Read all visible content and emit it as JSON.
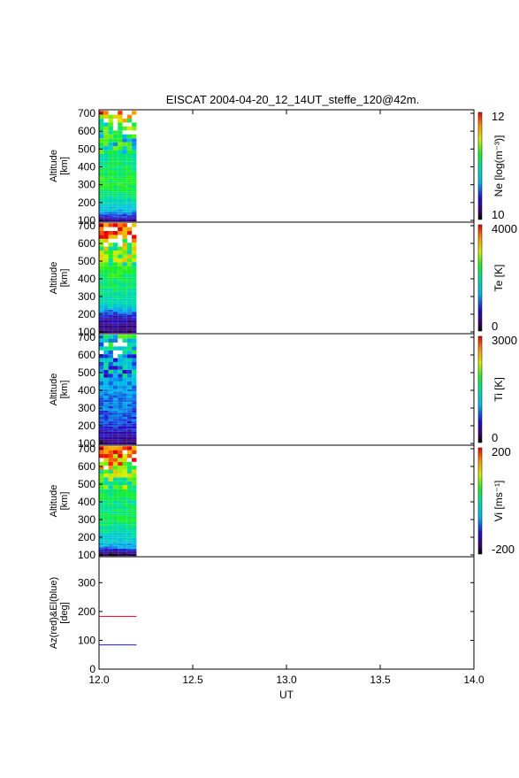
{
  "title": "EISCAT 2004-04-20_12_14UT_steffe_120@42m.",
  "x_axis": {
    "label": "UT",
    "range": [
      12.0,
      14.0
    ],
    "ticks": [
      "12.0",
      "12.5",
      "13.0",
      "13.5",
      "14.0"
    ]
  },
  "data_time_range": [
    12.0,
    12.2
  ],
  "chart_data": [
    {
      "type": "heatmap",
      "parameter": "Ne",
      "ylabel": [
        "Altitude",
        "[km]"
      ],
      "yticks": [
        "100",
        "200",
        "300",
        "400",
        "500",
        "600",
        "700"
      ],
      "ylim": [
        90,
        720
      ],
      "colorbar": {
        "label": "Ne [log(m⁻³)]",
        "min": "10",
        "max": "12"
      },
      "value_scale": "log10",
      "profile_altitudes_km": [
        100,
        150,
        200,
        250,
        300,
        350,
        400,
        450,
        500,
        550,
        600,
        650,
        700
      ],
      "profile_values": [
        10.2,
        10.7,
        10.9,
        11.1,
        11.2,
        11.2,
        11.1,
        11.0,
        11.0,
        11.0,
        11.1,
        11.3,
        11.6
      ]
    },
    {
      "type": "heatmap",
      "parameter": "Te",
      "ylabel": [
        "Altitude",
        "[km]"
      ],
      "yticks": [
        "100",
        "200",
        "300",
        "400",
        "500",
        "600",
        "700"
      ],
      "ylim": [
        90,
        720
      ],
      "colorbar": {
        "label": "Te [K]",
        "min": "0",
        "max": "4000"
      },
      "profile_altitudes_km": [
        100,
        150,
        200,
        250,
        300,
        350,
        400,
        450,
        500,
        550,
        600,
        650,
        700
      ],
      "profile_values": [
        300,
        500,
        900,
        1800,
        2000,
        2150,
        2300,
        2400,
        2500,
        2600,
        2700,
        3900,
        4000
      ]
    },
    {
      "type": "heatmap",
      "parameter": "Ti",
      "ylabel": [
        "Altitude",
        "[km]"
      ],
      "yticks": [
        "100",
        "200",
        "300",
        "400",
        "500",
        "600",
        "700"
      ],
      "ylim": [
        90,
        720
      ],
      "colorbar": {
        "label": "Ti [K]",
        "min": "0",
        "max": "3000"
      },
      "profile_altitudes_km": [
        100,
        150,
        200,
        250,
        300,
        350,
        400,
        450,
        500,
        550,
        600,
        650,
        700
      ],
      "profile_values": [
        200,
        450,
        700,
        800,
        850,
        900,
        950,
        1000,
        1050,
        1100,
        1150,
        1300,
        1500
      ]
    },
    {
      "type": "heatmap",
      "parameter": "Vi",
      "ylabel": [
        "Altitude",
        "[km]"
      ],
      "yticks": [
        "100",
        "200",
        "300",
        "400",
        "500",
        "600",
        "700"
      ],
      "ylim": [
        90,
        720
      ],
      "colorbar": {
        "label": "Vi [ms⁻¹]",
        "min": "-200",
        "max": "200"
      },
      "profile_altitudes_km": [
        100,
        150,
        200,
        250,
        300,
        350,
        400,
        450,
        500,
        550,
        600,
        650,
        700
      ],
      "profile_values": [
        -190,
        -60,
        -30,
        0,
        30,
        20,
        10,
        30,
        40,
        50,
        100,
        150,
        190
      ]
    },
    {
      "type": "line",
      "ylabel": [
        "Az(red)&El(blue)",
        "[deg]"
      ],
      "yticks": [
        "0",
        "100",
        "200",
        "300"
      ],
      "ylim": [
        0,
        390
      ],
      "series": [
        {
          "color": "#e0001a",
          "x": [
            12.0,
            12.2
          ],
          "values": [
            183,
            183
          ]
        },
        {
          "color": "#1a1ad0",
          "x": [
            12.0,
            12.2
          ],
          "values": [
            84,
            84
          ]
        }
      ]
    }
  ]
}
